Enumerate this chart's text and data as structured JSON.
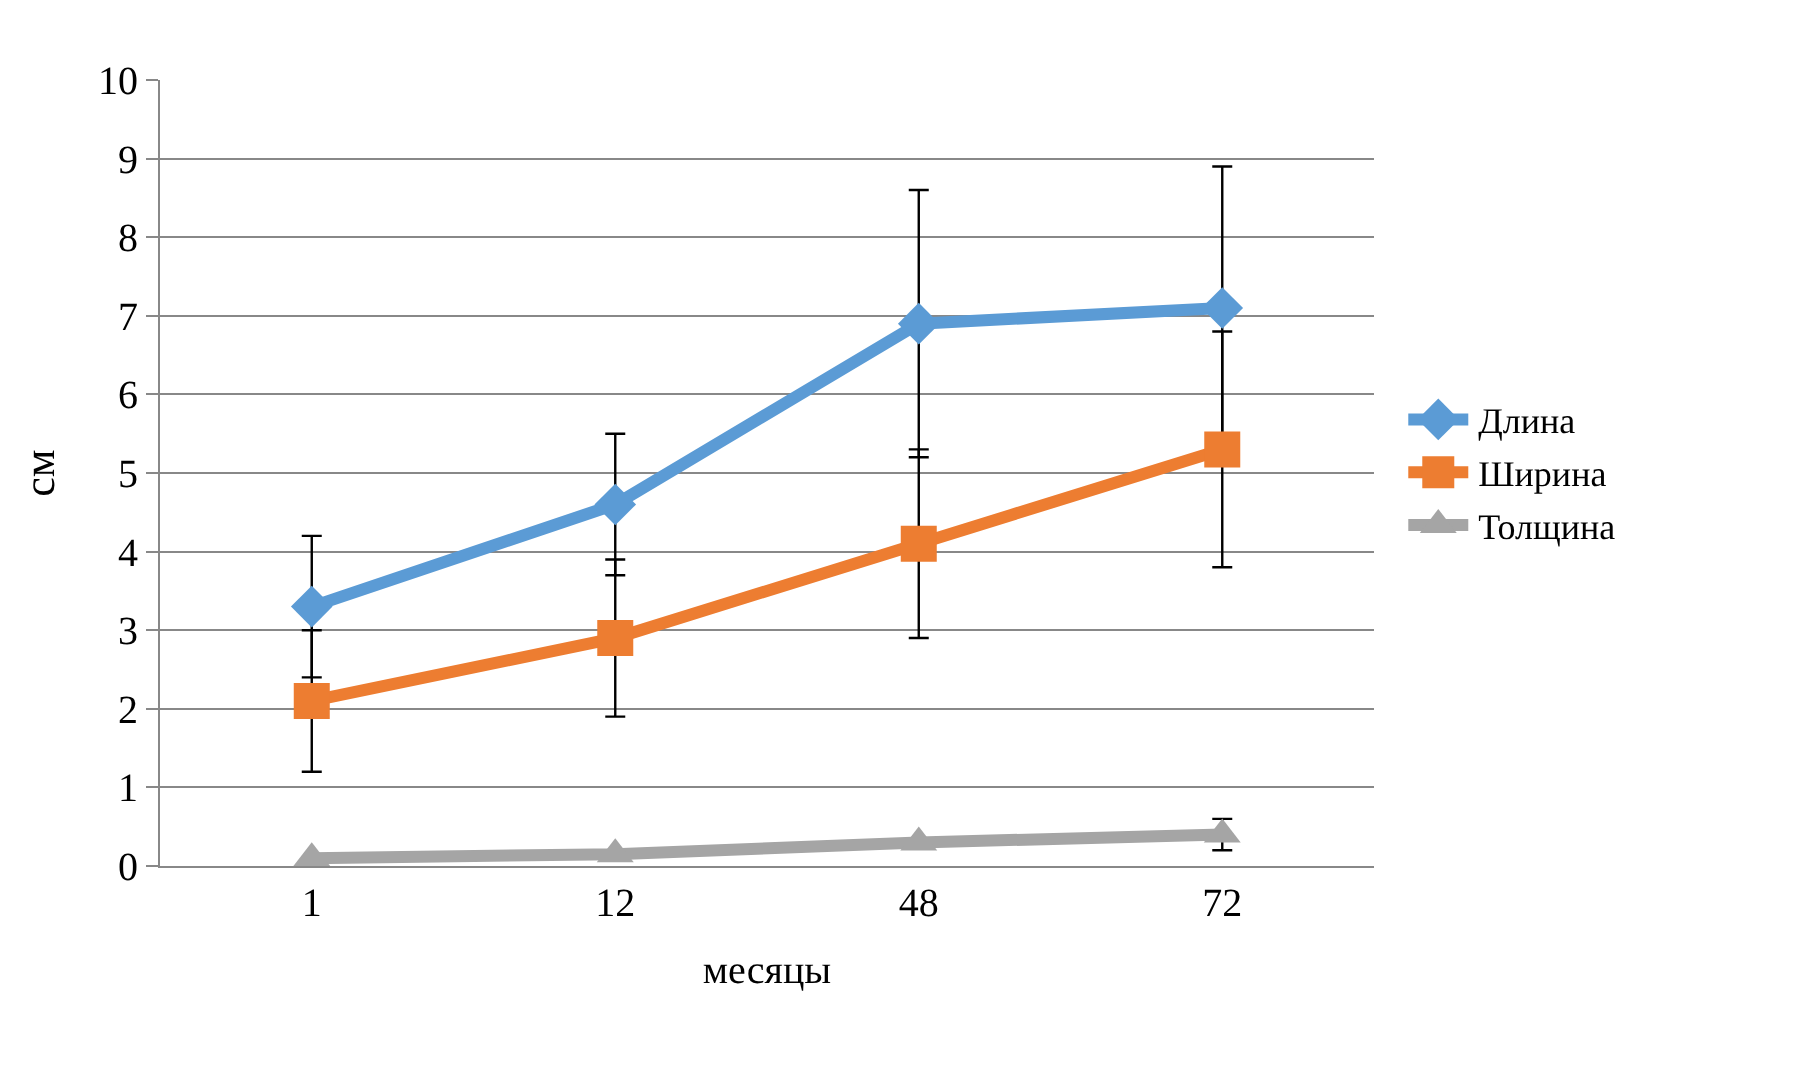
{
  "chart_data": {
    "type": "line",
    "xlabel": "месяцы",
    "ylabel": "см",
    "categories": [
      "1",
      "12",
      "48",
      "72"
    ],
    "ylim": [
      0,
      10
    ],
    "yticks": [
      0,
      1,
      2,
      3,
      4,
      5,
      6,
      7,
      8,
      9,
      10
    ],
    "grid": "y",
    "legend": "right",
    "series": [
      {
        "name": "Длина",
        "color": "#5b9bd5",
        "marker": "diamond",
        "values": [
          3.3,
          4.6,
          6.9,
          7.1
        ],
        "errors": [
          0.9,
          0.9,
          1.7,
          1.8
        ]
      },
      {
        "name": "Ширина",
        "color": "#ed7d31",
        "marker": "square",
        "values": [
          2.1,
          2.9,
          4.1,
          5.3
        ],
        "errors": [
          0.9,
          1.0,
          1.2,
          1.5
        ]
      },
      {
        "name": "Толщина",
        "color": "#a5a5a5",
        "marker": "triangle",
        "values": [
          0.1,
          0.15,
          0.3,
          0.4
        ],
        "errors": [
          null,
          null,
          null,
          0.2
        ]
      }
    ]
  }
}
